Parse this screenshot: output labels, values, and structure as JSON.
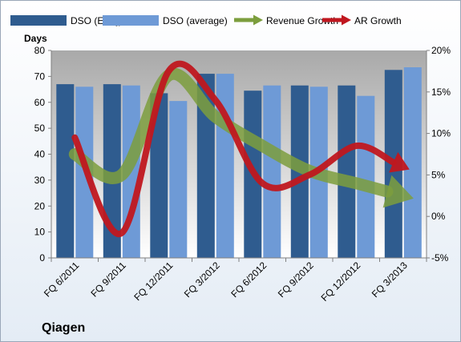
{
  "chart_data": {
    "type": "bar",
    "categories": [
      "FQ 6/2011",
      "FQ 9/2011",
      "FQ 12/2011",
      "FQ 3/2012",
      "FQ 6/2012",
      "FQ 9/2012",
      "FQ 12/2012",
      "FQ 3/2013"
    ],
    "ylabel": "Days",
    "ylim": [
      0,
      80
    ],
    "yticks": [
      "0",
      "10",
      "20",
      "30",
      "40",
      "50",
      "60",
      "70",
      "80"
    ],
    "y2lim": [
      -0.05,
      0.2
    ],
    "y2ticks": [
      "-5%",
      "0%",
      "5%",
      "10%",
      "15%",
      "20%"
    ],
    "company": "Qiagen",
    "legend_position": "top",
    "grid": false,
    "series": [
      {
        "name": "DSO (EOQ)",
        "kind": "bar",
        "axis": "left",
        "color": "#2F5C8F",
        "values": [
          67,
          67,
          63.5,
          71,
          64.5,
          66.5,
          66.5,
          72.5
        ]
      },
      {
        "name": "DSO (average)",
        "kind": "bar",
        "axis": "left",
        "color": "#6E9AD6",
        "values": [
          66,
          66.5,
          60.5,
          71,
          66.5,
          66,
          62.5,
          73.5
        ]
      },
      {
        "name": "Revenue Growth",
        "kind": "arrow",
        "axis": "right",
        "color": "#7C9E3D",
        "values": [
          0.075,
          0.05,
          0.17,
          0.12,
          0.085,
          0.055,
          0.04,
          0.025
        ]
      },
      {
        "name": "AR Growth",
        "kind": "arrow",
        "axis": "right",
        "color": "#C0171F",
        "values": [
          0.095,
          -0.02,
          0.175,
          0.14,
          0.04,
          0.05,
          0.085,
          0.06
        ]
      }
    ]
  }
}
